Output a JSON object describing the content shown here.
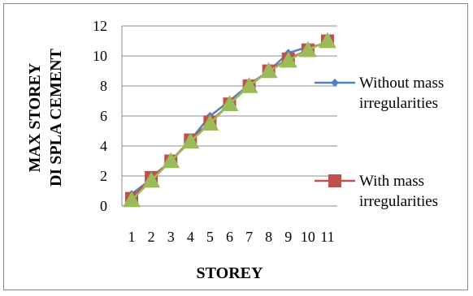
{
  "chart_data": {
    "type": "line",
    "categories": [
      "1",
      "2",
      "3",
      "4",
      "5",
      "6",
      "7",
      "8",
      "9",
      "10",
      "11"
    ],
    "xlabel": "STOREY",
    "ylabel_lines": [
      "MAX STOREY",
      "DI SPLA CEMENT"
    ],
    "ylim": [
      0,
      12
    ],
    "yticks": [
      "0",
      "2",
      "4",
      "6",
      "8",
      "10",
      "12"
    ],
    "grid": true,
    "legend_position": "right",
    "series": [
      {
        "name_lines": [
          "Without mass",
          "irregularities"
        ],
        "color": "#4f81bd",
        "marker": "diamond",
        "values": [
          0.8,
          1.8,
          3.0,
          4.4,
          6.0,
          7.0,
          8.1,
          9.0,
          10.2,
          10.6,
          10.8
        ]
      },
      {
        "name_lines": [
          "With mass",
          "irregularities"
        ],
        "color": "#c0504d",
        "marker": "square",
        "values": [
          0.5,
          1.9,
          3.0,
          4.4,
          5.6,
          6.8,
          8.0,
          9.0,
          9.8,
          10.4,
          11.0
        ]
      },
      {
        "color": "#9bbb59",
        "marker": "triangle",
        "values": [
          0.4,
          1.7,
          3.0,
          4.3,
          5.5,
          6.8,
          8.0,
          9.0,
          9.7,
          10.4,
          11.0
        ]
      }
    ]
  }
}
